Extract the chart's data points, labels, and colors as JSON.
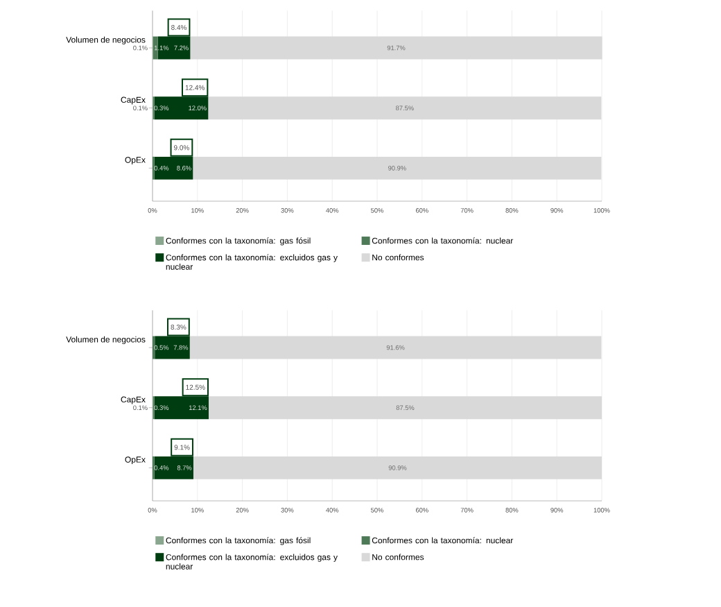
{
  "chart_data": [
    {
      "type": "bar",
      "orientation": "horizontal",
      "stacked": true,
      "categories": [
        "Volumen de negocios",
        "CapEx",
        "OpEx"
      ],
      "series": [
        {
          "name": "Conformes con la taxonomía: gas fósil",
          "color": "#8aa68f",
          "values": [
            0.1,
            0.1,
            null
          ],
          "value_labels": [
            "0.1%",
            "0.1%",
            null
          ]
        },
        {
          "name": "Conformes con la taxonomía: nuclear",
          "color": "#4f7a58",
          "values": [
            1.1,
            0.3,
            0.4
          ],
          "value_labels": [
            "1.1%",
            "0.3%",
            "0.4%"
          ]
        },
        {
          "name": "Conformes con la taxonomía: excluidos gas y nuclear",
          "color": "#003d10",
          "values": [
            7.2,
            12.0,
            8.6
          ],
          "value_labels": [
            "7.2%",
            "12.0%",
            "8.6%"
          ]
        },
        {
          "name": "No conformes",
          "color": "#d9d9d9",
          "values": [
            91.7,
            87.5,
            90.9
          ],
          "value_labels": [
            "91.7%",
            "87.5%",
            "90.9%"
          ]
        }
      ],
      "annotations": [
        {
          "text": "8.4%",
          "x": 8.4,
          "y": "Volumen de negocios"
        },
        {
          "text": "12.4%",
          "x": 12.4,
          "y": "CapEx"
        },
        {
          "text": "9.0%",
          "x": 9.0,
          "y": "OpEx"
        }
      ],
      "xlim": [
        0,
        100
      ],
      "xticks": [
        {
          "value": 0,
          "label": "0%"
        },
        {
          "value": 10,
          "label": "10%"
        },
        {
          "value": 20,
          "label": "20%"
        },
        {
          "value": 30,
          "label": "30%"
        },
        {
          "value": 40,
          "label": "40%"
        },
        {
          "value": 50,
          "label": "50%"
        },
        {
          "value": 60,
          "label": "60%"
        },
        {
          "value": 70,
          "label": "70%"
        },
        {
          "value": 80,
          "label": "80%"
        },
        {
          "value": 90,
          "label": "90%"
        },
        {
          "value": 100,
          "label": "100%"
        }
      ],
      "grid": "x",
      "legend": "bottom"
    },
    {
      "type": "bar",
      "orientation": "horizontal",
      "stacked": true,
      "categories": [
        "Volumen de negocios",
        "CapEx",
        "OpEx"
      ],
      "series": [
        {
          "name": "Conformes con la taxonomía: gas fósil",
          "color": "#8aa68f",
          "values": [
            null,
            0.1,
            null
          ],
          "value_labels": [
            null,
            "0.1%",
            null
          ]
        },
        {
          "name": "Conformes con la taxonomía: nuclear",
          "color": "#4f7a58",
          "values": [
            0.5,
            0.3,
            0.4
          ],
          "value_labels": [
            "0.5%",
            "0.3%",
            "0.4%"
          ]
        },
        {
          "name": "Conformes con la taxonomía: excluidos gas y nuclear",
          "color": "#003d10",
          "values": [
            7.8,
            12.1,
            8.7
          ],
          "value_labels": [
            "7.8%",
            "12.1%",
            "8.7%"
          ]
        },
        {
          "name": "No conformes",
          "color": "#d9d9d9",
          "values": [
            91.6,
            87.5,
            90.9
          ],
          "value_labels": [
            "91.6%",
            "87.5%",
            "90.9%"
          ]
        }
      ],
      "annotations": [
        {
          "text": "8.3%",
          "x": 8.3,
          "y": "Volumen de negocios"
        },
        {
          "text": "12.5%",
          "x": 12.5,
          "y": "CapEx"
        },
        {
          "text": "9.1%",
          "x": 9.1,
          "y": "OpEx"
        }
      ],
      "xlim": [
        0,
        100
      ],
      "xticks": [
        {
          "value": 0,
          "label": "0%"
        },
        {
          "value": 10,
          "label": "10%"
        },
        {
          "value": 20,
          "label": "20%"
        },
        {
          "value": 30,
          "label": "30%"
        },
        {
          "value": 40,
          "label": "40%"
        },
        {
          "value": 50,
          "label": "50%"
        },
        {
          "value": 60,
          "label": "60%"
        },
        {
          "value": 70,
          "label": "70%"
        },
        {
          "value": 80,
          "label": "80%"
        },
        {
          "value": 90,
          "label": "90%"
        },
        {
          "value": 100,
          "label": "100%"
        }
      ],
      "grid": "x",
      "legend": "bottom"
    }
  ]
}
